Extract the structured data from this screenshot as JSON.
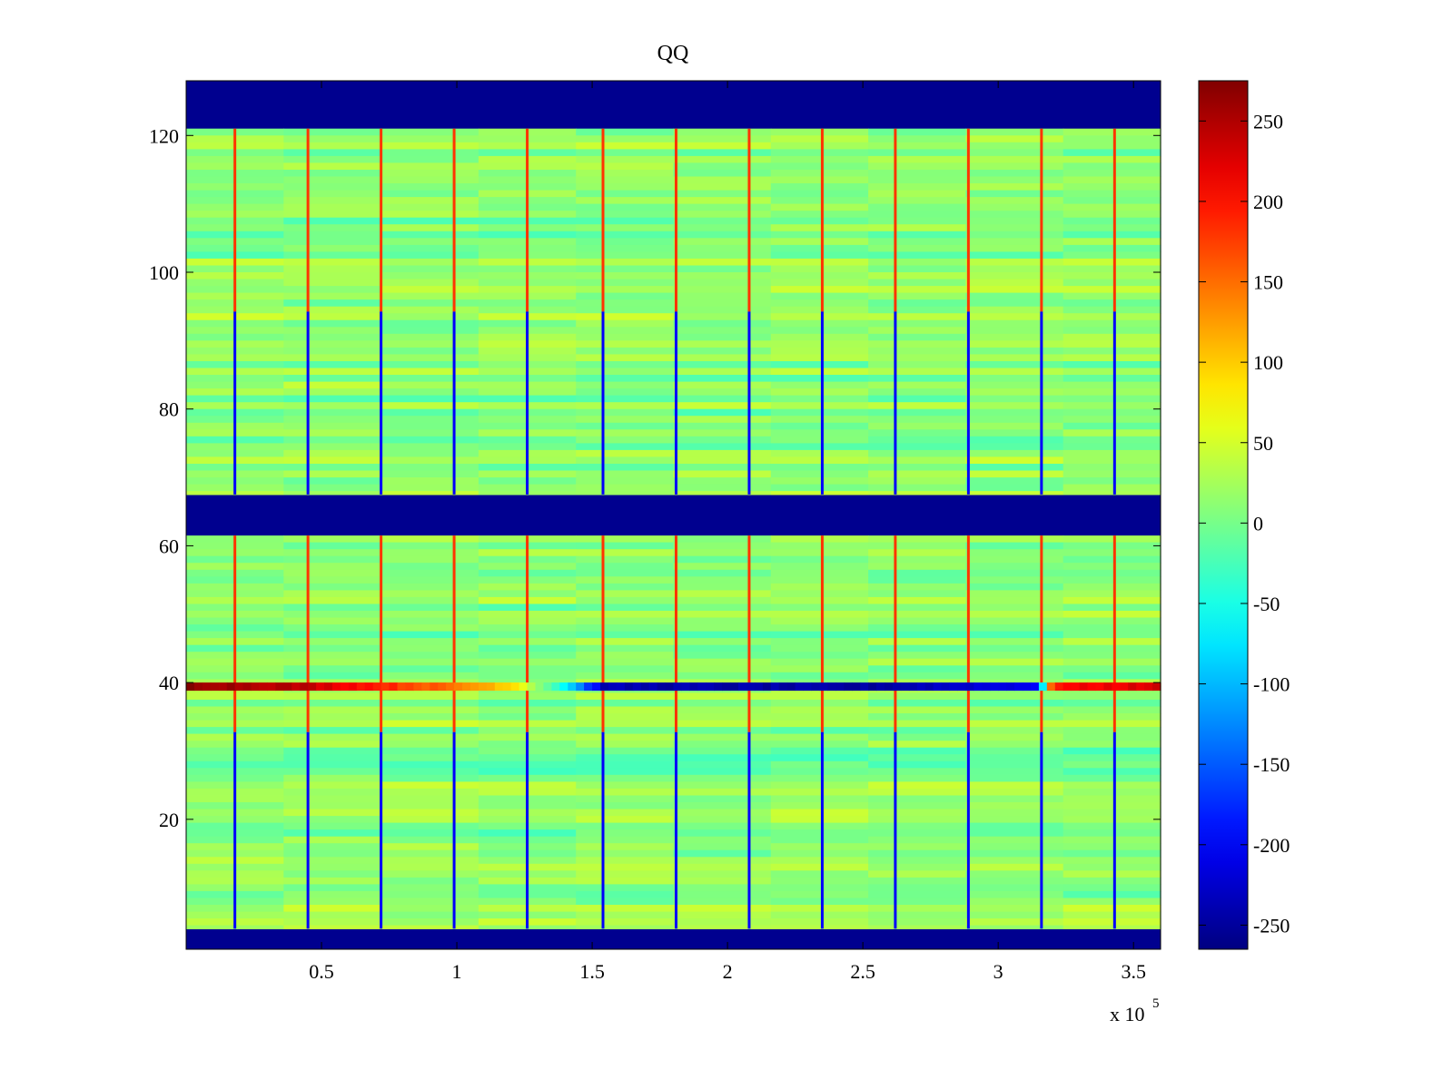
{
  "chart_data": {
    "type": "heatmap",
    "title": "QQ",
    "xlabel": "",
    "ylabel": "",
    "x_exponent_label": {
      "base": "x 10",
      "exponent": "5"
    },
    "xlim": [
      0,
      3.6
    ],
    "ylim": [
      1,
      128
    ],
    "x_ticks": [
      0.5,
      1,
      1.5,
      2,
      2.5,
      3,
      3.5
    ],
    "x_tick_labels": [
      "0.5",
      "1",
      "1.5",
      "2",
      "2.5",
      "3",
      "3.5"
    ],
    "y_ticks": [
      20,
      40,
      60,
      80,
      100,
      120
    ],
    "y_tick_labels": [
      "20",
      "40",
      "60",
      "80",
      "100",
      "120"
    ],
    "colormap": "jet",
    "clim": [
      -265,
      275
    ],
    "colorbar": {
      "position": "right",
      "ticks": [
        250,
        200,
        150,
        100,
        50,
        0,
        -50,
        -100,
        -150,
        -200,
        -250
      ],
      "tick_labels": [
        "250",
        "200",
        "150",
        "100",
        "50",
        "0",
        "-50",
        "-100",
        "-150",
        "-200",
        "-250"
      ]
    },
    "background_value": -265,
    "data_rows": [
      [
        4,
        61.5
      ],
      [
        67.5,
        121
      ]
    ],
    "vertical_lines_x": [
      0.18,
      0.45,
      0.72,
      0.99,
      1.26,
      1.54,
      1.81,
      2.08,
      2.35,
      2.62,
      2.89,
      3.16,
      3.43
    ],
    "strong_line_y": 39,
    "strong_line_profile": [
      {
        "x": 0.0,
        "value": 270
      },
      {
        "x": 0.45,
        "value": 240
      },
      {
        "x": 0.9,
        "value": 160
      },
      {
        "x": 1.2,
        "value": 100
      },
      {
        "x": 1.4,
        "value": -60
      },
      {
        "x": 1.55,
        "value": -240
      },
      {
        "x": 2.5,
        "value": -250
      },
      {
        "x": 3.15,
        "value": -200
      },
      {
        "x": 3.2,
        "value": 200
      },
      {
        "x": 3.6,
        "value": 230
      }
    ]
  }
}
